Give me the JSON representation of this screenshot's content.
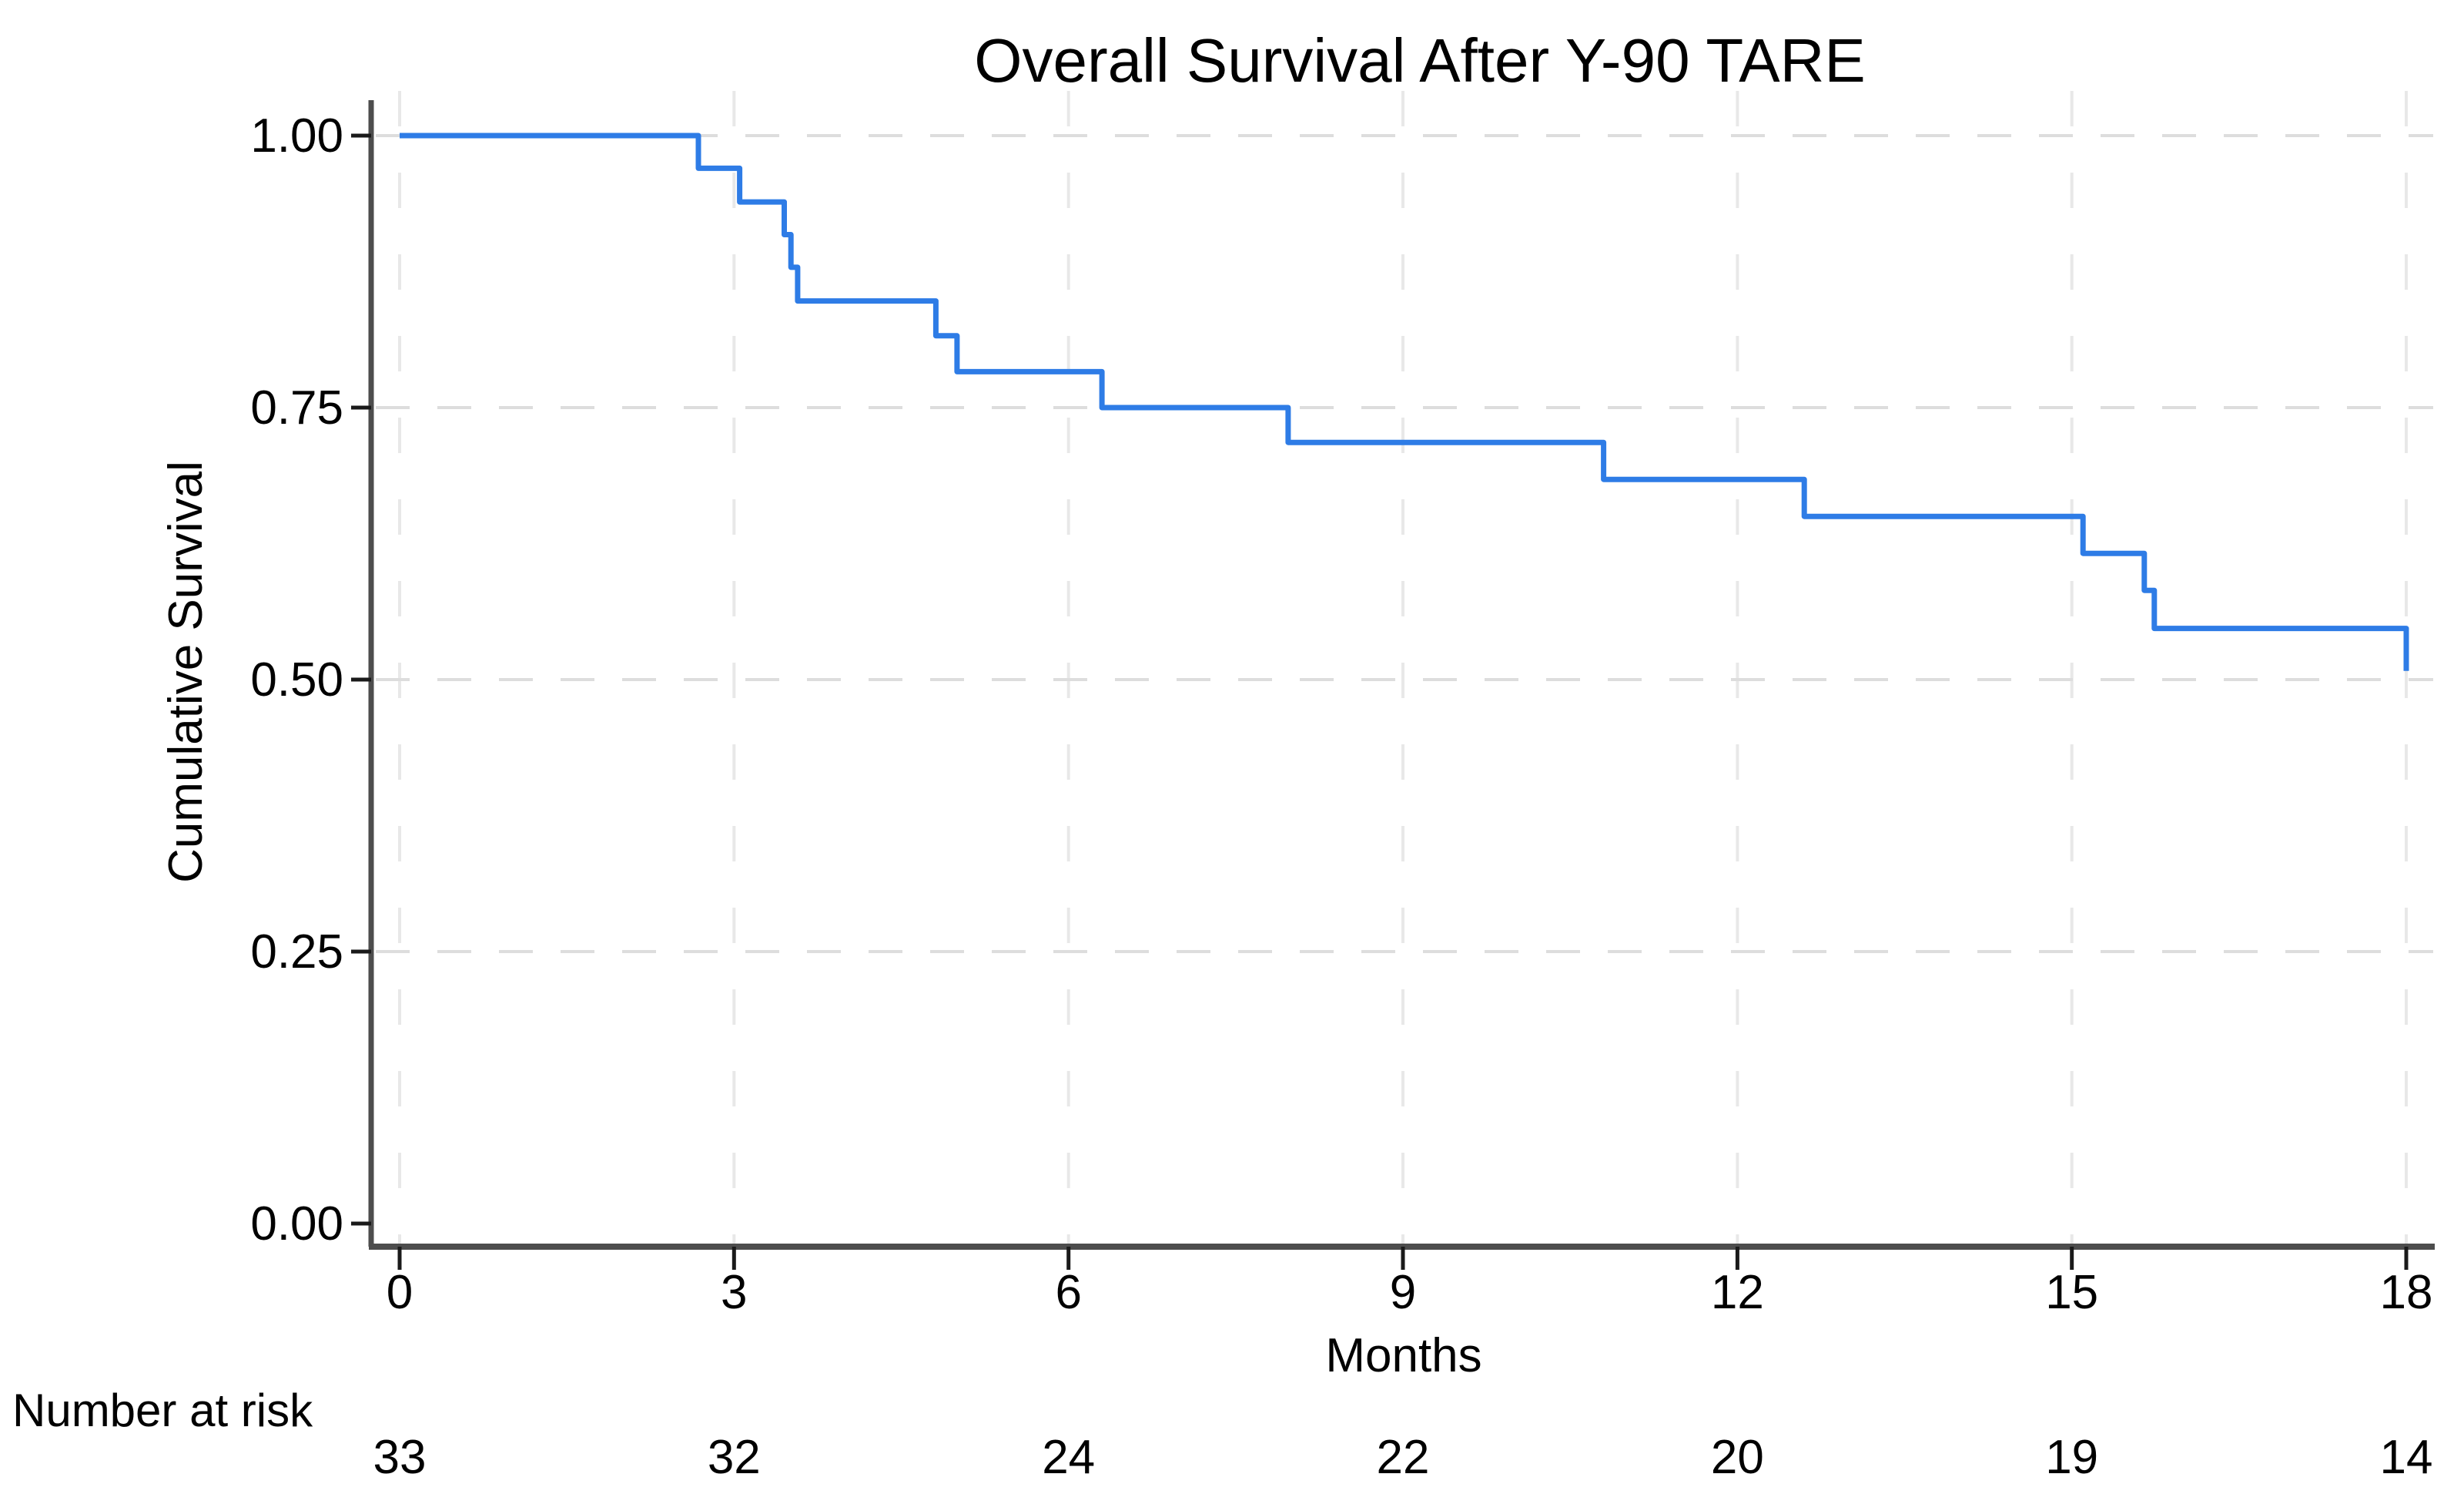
{
  "style": {
    "background": "#ffffff",
    "curve_color": "#2E7CE6",
    "axis_color": "#4d4d4d",
    "tick_color": "#1a1a1a",
    "grid_horizontal_color": "#dddddd",
    "grid_vertical_color": "#e8e8e8",
    "text_color": "#000000"
  },
  "chart_data": {
    "type": "line",
    "subtype": "kaplan_meier_step_function",
    "title": "Overall Survival After Y-90 TARE",
    "xlabel": "Months",
    "ylabel": "Cumulative Survival",
    "xlim": [
      0,
      18
    ],
    "ylim": [
      0.0,
      1.0
    ],
    "x_ticks": [
      0,
      3,
      6,
      9,
      12,
      15,
      18
    ],
    "x_tick_labels": [
      "0",
      "3",
      "6",
      "9",
      "12",
      "15",
      "18"
    ],
    "y_ticks": [
      0.0,
      0.25,
      0.5,
      0.75,
      1.0
    ],
    "y_tick_labels": [
      "0.00",
      "0.25",
      "0.50",
      "0.75",
      "1.00"
    ],
    "grid": "light dashed vertical gridlines at every x tick; light dashed horizontal gridlines at y = 0.25, 0.50, 0.75, 1.00",
    "legend_position": "none",
    "series": [
      {
        "name": "Overall survival",
        "color": "#2E7CE6",
        "event_times_months": [
          0,
          2.68,
          3.05,
          3.45,
          3.51,
          3.57,
          4.81,
          5.0,
          6.3,
          7.97,
          10.8,
          12.6,
          15.1,
          15.65,
          15.74,
          18.0
        ],
        "survival_after_event": [
          1.0,
          0.97,
          0.939,
          0.909,
          0.879,
          0.848,
          0.816,
          0.783,
          0.75,
          0.718,
          0.684,
          0.65,
          0.616,
          0.582,
          0.547,
          0.508
        ]
      }
    ],
    "number_at_risk": {
      "label": "Number at risk",
      "times": [
        0,
        3,
        6,
        9,
        12,
        15,
        18
      ],
      "counts": [
        33,
        32,
        24,
        22,
        20,
        19,
        14
      ]
    }
  }
}
